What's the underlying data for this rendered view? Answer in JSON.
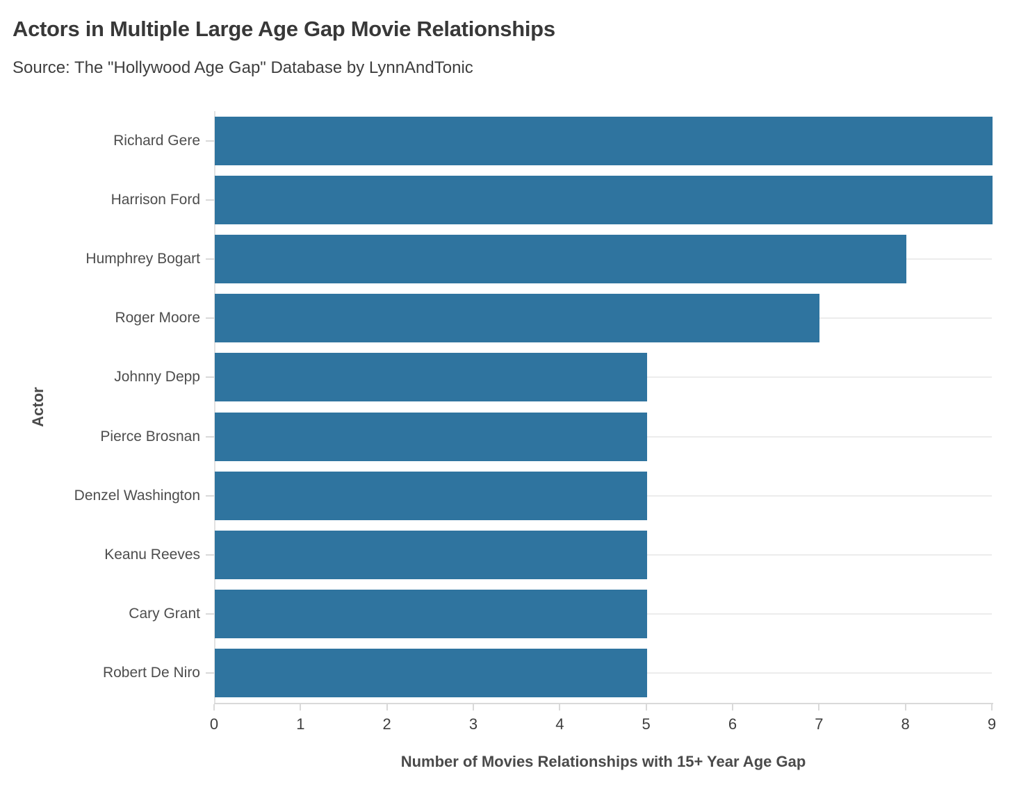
{
  "chart_data": {
    "type": "bar",
    "orientation": "horizontal",
    "title": "Actors in Multiple Large Age Gap Movie Relationships",
    "subtitle": "Source: The \"Hollywood Age Gap\" Database by LynnAndTonic",
    "categories": [
      "Richard Gere",
      "Harrison Ford",
      "Humphrey Bogart",
      "Roger Moore",
      "Johnny Depp",
      "Pierce Brosnan",
      "Denzel Washington",
      "Keanu Reeves",
      "Cary Grant",
      "Robert De Niro"
    ],
    "values": [
      9,
      9,
      8,
      7,
      5,
      5,
      5,
      5,
      5,
      5
    ],
    "xlabel": "Number of Movies Relationships with 15+ Year Age Gap",
    "ylabel": "Actor",
    "xlim": [
      0,
      9
    ],
    "x_ticks": [
      "0",
      "1",
      "2",
      "3",
      "4",
      "5",
      "6",
      "7",
      "8",
      "9"
    ],
    "grid": "horizontal-category-lines",
    "legend": "none",
    "colors": {
      "bar": "#2f749f",
      "gridline": "#ececec",
      "axis_line": "#d9d9d9",
      "title_text": "#383838",
      "label_text": "#4d4d4d"
    }
  }
}
